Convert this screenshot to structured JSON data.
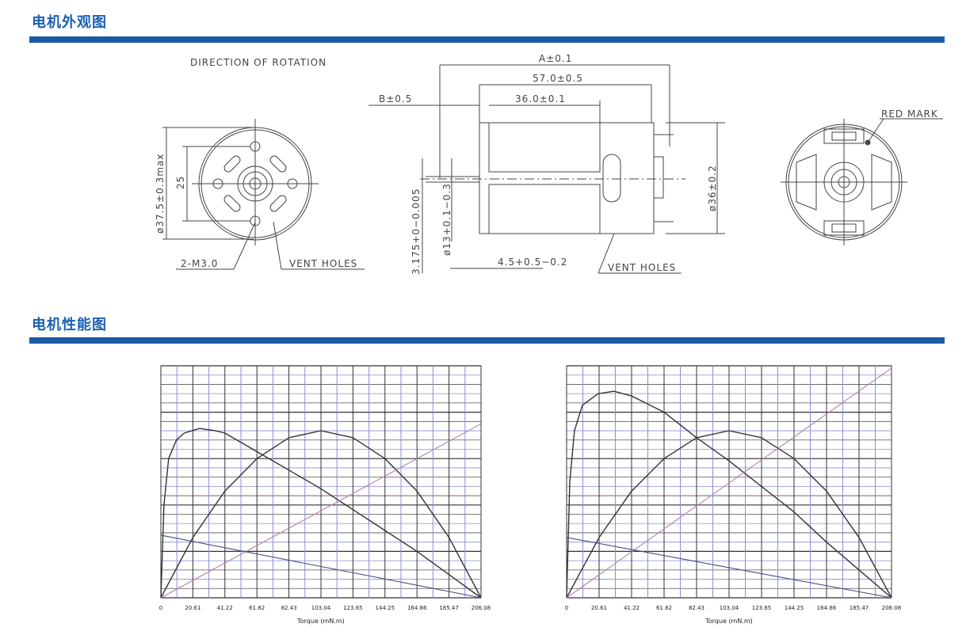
{
  "sections": {
    "appearance_title": "电机外观图",
    "performance_title": "电机性能图"
  },
  "drawing": {
    "direction_label": "DIRECTION OF ROTATION",
    "dia_outer": "ø37.5±0.3max",
    "dim_25": "25",
    "m3_label": "2-M3.0",
    "vent_holes_front": "VENT HOLES",
    "dim_a": "A±0.1",
    "dim_57": "57.0±0.5",
    "dim_36": "36.0±0.1",
    "dim_b": "B±0.5",
    "dim_36_dia": "ø36±0.2",
    "shaft_dia": "3.175+0−0.005",
    "boss_dia": "ø13+0.1−0.3",
    "boss_len": "4.5+0.5−0.2",
    "vent_holes_side": "VENT HOLES",
    "red_mark": "RED MARK"
  },
  "chart_data": [
    {
      "type": "line",
      "xlabel": "Torque (mN.m)",
      "x_ticks": [
        "0",
        "20.61",
        "41.22",
        "61.82",
        "82.43",
        "103.04",
        "123.65",
        "144.25",
        "164.86",
        "185.47",
        "206.08"
      ],
      "xlim": [
        0,
        206.08
      ],
      "ylim": [
        0,
        1
      ],
      "grid": true,
      "colors": {
        "curves": "#333333",
        "current": "#b07fb0",
        "speed": "#4a4a8a"
      },
      "series": [
        {
          "x": [
            0,
            2,
            5,
            10,
            15,
            25,
            35,
            41.22,
            61.82,
            82.43,
            103.04,
            123.65,
            144.25,
            164.86,
            185.47,
            206.08
          ],
          "y": [
            0,
            0.4,
            0.6,
            0.68,
            0.71,
            0.73,
            0.72,
            0.71,
            0.63,
            0.55,
            0.47,
            0.38,
            0.29,
            0.2,
            0.1,
            0
          ]
        },
        {
          "x": [
            0,
            20.61,
            41.22,
            61.82,
            82.43,
            103.04,
            123.65,
            144.25,
            164.86,
            185.47,
            206.08
          ],
          "y": [
            0,
            0.26,
            0.46,
            0.6,
            0.69,
            0.72,
            0.69,
            0.6,
            0.46,
            0.26,
            0
          ]
        },
        {
          "x": [
            0,
            206.08
          ],
          "y": [
            0,
            0.75
          ]
        },
        {
          "x": [
            0,
            206.08
          ],
          "y": [
            0.27,
            0
          ]
        }
      ]
    },
    {
      "type": "line",
      "xlabel": "Torque (mN.m)",
      "x_ticks": [
        "0",
        "20.61",
        "41.22",
        "61.82",
        "82.43",
        "103.04",
        "123.65",
        "144.25",
        "164.86",
        "185.47",
        "206.08"
      ],
      "xlim": [
        0,
        206.08
      ],
      "ylim": [
        0,
        1
      ],
      "grid": true,
      "colors": {
        "curves": "#333333",
        "current": "#b07fb0",
        "speed": "#4a4a8a"
      },
      "series": [
        {
          "x": [
            0,
            2,
            5,
            10,
            20,
            30,
            41.22,
            61.82,
            82.43,
            103.04,
            123.65,
            144.25,
            164.86,
            185.47,
            206.08
          ],
          "y": [
            0,
            0.5,
            0.72,
            0.83,
            0.88,
            0.89,
            0.87,
            0.8,
            0.69,
            0.59,
            0.48,
            0.37,
            0.24,
            0.12,
            0
          ]
        },
        {
          "x": [
            0,
            20.61,
            41.22,
            61.82,
            82.43,
            103.04,
            123.65,
            144.25,
            164.86,
            185.47,
            206.08
          ],
          "y": [
            0,
            0.26,
            0.46,
            0.6,
            0.69,
            0.72,
            0.69,
            0.6,
            0.46,
            0.26,
            0
          ]
        },
        {
          "x": [
            0,
            206.08
          ],
          "y": [
            0,
            0.99
          ]
        },
        {
          "x": [
            0,
            206.08
          ],
          "y": [
            0.26,
            0
          ]
        }
      ]
    }
  ]
}
